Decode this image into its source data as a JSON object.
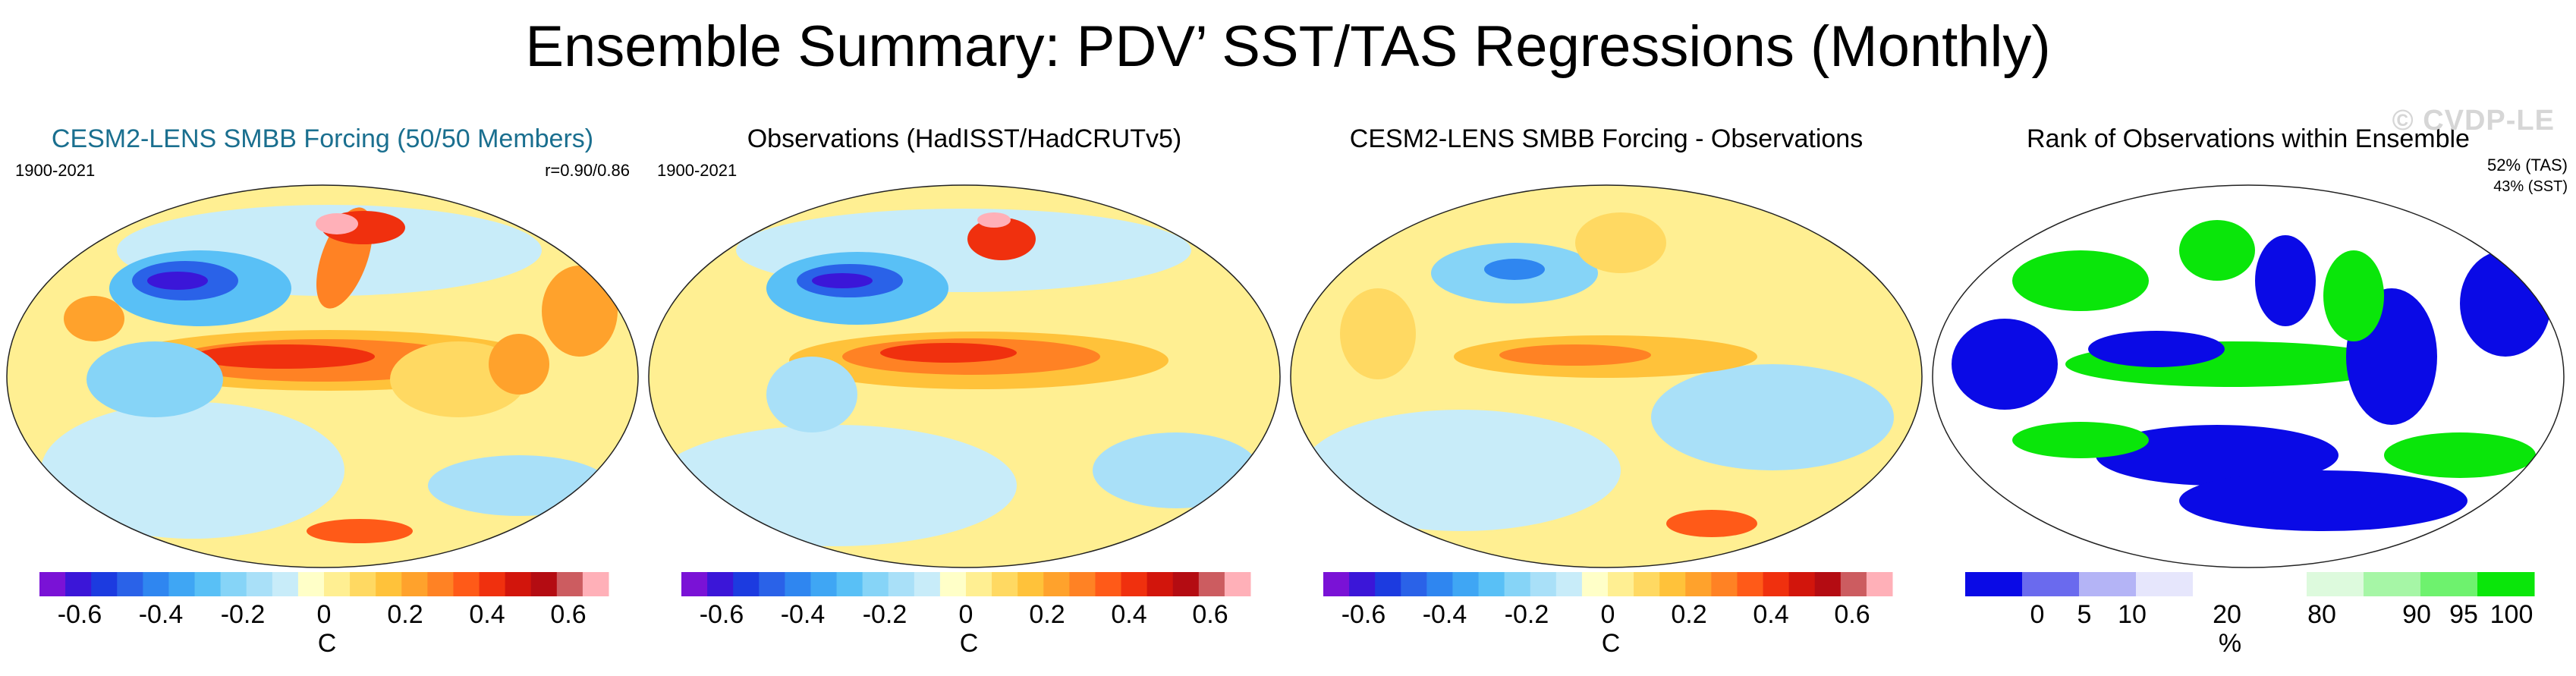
{
  "title": "Ensemble Summary: PDV’ SST/TAS Regressions (Monthly)",
  "watermark": "© CVDP-LE",
  "panels": [
    {
      "title": "CESM2-LENS SMBB Forcing (50/50 Members)",
      "period": "1900-2021",
      "corr": "r=0.90/0.86",
      "units": "C",
      "tick_labels": [
        "-0.6",
        "-0.4",
        "-0.2",
        "0",
        "0.2",
        "0.4",
        "0.6"
      ]
    },
    {
      "title": "Observations (HadISST/HadCRUTv5)",
      "period": "1900-2021",
      "units": "C",
      "tick_labels": [
        "-0.6",
        "-0.4",
        "-0.2",
        "0",
        "0.2",
        "0.4",
        "0.6"
      ]
    },
    {
      "title": "CESM2-LENS SMBB Forcing - Observations",
      "units": "C",
      "tick_labels": [
        "-0.6",
        "-0.4",
        "-0.2",
        "0",
        "0.2",
        "0.4",
        "0.6"
      ]
    },
    {
      "title": "Rank of Observations within Ensemble",
      "tas_rank": "52% (TAS)",
      "sst_rank": "43% (SST)",
      "units": "%",
      "tick_labels": [
        "0",
        "5",
        "10",
        "20",
        "80",
        "90",
        "95",
        "100"
      ]
    }
  ],
  "chart_data": [
    {
      "type": "heatmap",
      "title": "CESM2-LENS SMBB Forcing (50/50 Members)",
      "units": "C",
      "period": "1900-2021",
      "pattern_correlation_sst_tas": [
        0.9,
        0.86
      ],
      "colorbar_range": [
        -0.7,
        0.7
      ],
      "colorbar_interval": 0.05,
      "features": [
        "strong positive anomaly in tropical/eastern Pacific up to ~0.6 C",
        "negative anomaly in North Pacific near Japan down to ~-0.6 C",
        "positive anomaly Alaska/Bering coast ~0.7 C"
      ]
    },
    {
      "type": "heatmap",
      "title": "Observations (HadISST/HadCRUTv5)",
      "units": "C",
      "period": "1900-2021",
      "colorbar_range": [
        -0.7,
        0.7
      ],
      "colorbar_interval": 0.05
    },
    {
      "type": "heatmap",
      "title": "CESM2-LENS SMBB Forcing - Observations",
      "units": "C",
      "colorbar_range": [
        -0.7,
        0.7
      ],
      "colorbar_interval": 0.05
    },
    {
      "type": "heatmap",
      "title": "Rank of Observations within Ensemble",
      "units": "%",
      "rank_tas_percent": 52,
      "rank_sst_percent": 43,
      "colorbar_bins": [
        0,
        5,
        10,
        20,
        80,
        90,
        95,
        100
      ]
    }
  ],
  "colors": {
    "diverging": [
      "#7a12d6",
      "#3b16d8",
      "#1c3be0",
      "#2a62e8",
      "#2f86f0",
      "#3fa6f4",
      "#59c0f6",
      "#86d4f7",
      "#a9e0f8",
      "#c8ecf9",
      "#ffffc8",
      "#ffef92",
      "#ffd962",
      "#ffc23a",
      "#ffa22c",
      "#ff8224",
      "#ff5a18",
      "#f0300e",
      "#d2150c",
      "#b40c12",
      "#cc5c60",
      "#ffb0b8"
    ],
    "rank": [
      "#0a0ae6",
      "#6a6aee",
      "#b4b4f6",
      "#e6e6fc",
      "#ffffff",
      "#ddfadd",
      "#a6f6a6",
      "#6ef26e",
      "#0ae60a"
    ]
  }
}
